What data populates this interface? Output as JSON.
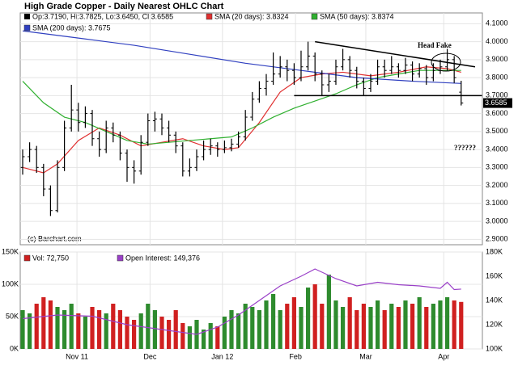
{
  "chart_data": [
    {
      "type": "ohlc",
      "title": "High Grade Copper - Daily Nearest OHLC Chart",
      "ohlc_legend": "Op:3.7190, Hi:3.7825, Lo:3.6450, Cl:3.6585",
      "bar_color": "#000000",
      "credit": "(c) Barchart.com",
      "xlim": [
        -0.35,
        66.05
      ],
      "ylim": [
        2.87,
        4.16
      ],
      "xticks": [
        {
          "value": 7.8,
          "label": "Nov 11"
        },
        {
          "value": 18.3,
          "label": "Dec"
        },
        {
          "value": 28.7,
          "label": "Jan 12"
        },
        {
          "value": 39.2,
          "label": "Feb"
        },
        {
          "value": 49.3,
          "label": "Mar"
        },
        {
          "value": 60.5,
          "label": "Apr"
        }
      ],
      "yticks": [
        {
          "value": 2.9,
          "label": "2.9000"
        },
        {
          "value": 3.0,
          "label": "3.0000"
        },
        {
          "value": 3.1,
          "label": "3.1000"
        },
        {
          "value": 3.2,
          "label": "3.2000"
        },
        {
          "value": 3.3,
          "label": "3.3000"
        },
        {
          "value": 3.4,
          "label": "3.4000"
        },
        {
          "value": 3.5,
          "label": "3.5000"
        },
        {
          "value": 3.6,
          "label": "3.6000"
        },
        {
          "value": 3.7,
          "label": "3.7000"
        },
        {
          "value": 3.8,
          "label": "3.8000"
        },
        {
          "value": 3.9,
          "label": "3.9000"
        },
        {
          "value": 4.0,
          "label": "4.0000"
        },
        {
          "value": 4.1,
          "label": "4.1000"
        }
      ],
      "grid": true,
      "bars": [
        [
          3.3,
          3.4,
          3.26,
          3.36
        ],
        [
          3.36,
          3.44,
          3.33,
          3.4
        ],
        [
          3.4,
          3.42,
          3.27,
          3.3
        ],
        [
          3.3,
          3.32,
          3.14,
          3.18
        ],
        [
          3.18,
          3.2,
          3.03,
          3.06
        ],
        [
          3.06,
          3.34,
          3.05,
          3.3
        ],
        [
          3.3,
          3.56,
          3.28,
          3.52
        ],
        [
          3.52,
          3.76,
          3.5,
          3.62
        ],
        [
          3.62,
          3.66,
          3.5,
          3.55
        ],
        [
          3.55,
          3.64,
          3.52,
          3.6
        ],
        [
          3.6,
          3.62,
          3.42,
          3.46
        ],
        [
          3.46,
          3.5,
          3.36,
          3.4
        ],
        [
          3.4,
          3.56,
          3.38,
          3.52
        ],
        [
          3.52,
          3.55,
          3.44,
          3.48
        ],
        [
          3.48,
          3.5,
          3.34,
          3.38
        ],
        [
          3.38,
          3.4,
          3.22,
          3.3
        ],
        [
          3.3,
          3.34,
          3.21,
          3.28
        ],
        [
          3.28,
          3.48,
          3.26,
          3.44
        ],
        [
          3.44,
          3.6,
          3.42,
          3.56
        ],
        [
          3.56,
          3.61,
          3.5,
          3.57
        ],
        [
          3.57,
          3.6,
          3.48,
          3.52
        ],
        [
          3.52,
          3.56,
          3.44,
          3.48
        ],
        [
          3.48,
          3.5,
          3.38,
          3.42
        ],
        [
          3.42,
          3.44,
          3.25,
          3.28
        ],
        [
          3.28,
          3.35,
          3.25,
          3.3
        ],
        [
          3.3,
          3.4,
          3.28,
          3.36
        ],
        [
          3.36,
          3.45,
          3.34,
          3.4
        ],
        [
          3.4,
          3.46,
          3.37,
          3.42
        ],
        [
          3.42,
          3.44,
          3.36,
          3.4
        ],
        [
          3.4,
          3.45,
          3.38,
          3.41
        ],
        [
          3.41,
          3.46,
          3.39,
          3.43
        ],
        [
          3.43,
          3.5,
          3.41,
          3.47
        ],
        [
          3.47,
          3.62,
          3.45,
          3.58
        ],
        [
          3.58,
          3.72,
          3.56,
          3.68
        ],
        [
          3.68,
          3.78,
          3.66,
          3.74
        ],
        [
          3.74,
          3.82,
          3.7,
          3.78
        ],
        [
          3.78,
          3.94,
          3.76,
          3.82
        ],
        [
          3.82,
          3.92,
          3.8,
          3.86
        ],
        [
          3.86,
          3.9,
          3.78,
          3.84
        ],
        [
          3.84,
          3.88,
          3.76,
          3.8
        ],
        [
          3.8,
          3.95,
          3.78,
          3.86
        ],
        [
          3.86,
          4.0,
          3.84,
          3.92
        ],
        [
          3.92,
          3.94,
          3.78,
          3.82
        ],
        [
          3.82,
          3.84,
          3.7,
          3.76
        ],
        [
          3.76,
          3.82,
          3.72,
          3.78
        ],
        [
          3.78,
          3.9,
          3.76,
          3.86
        ],
        [
          3.86,
          3.96,
          3.84,
          3.9
        ],
        [
          3.9,
          3.92,
          3.8,
          3.84
        ],
        [
          3.84,
          3.86,
          3.74,
          3.78
        ],
        [
          3.78,
          3.8,
          3.7,
          3.74
        ],
        [
          3.74,
          3.82,
          3.72,
          3.78
        ],
        [
          3.78,
          3.9,
          3.76,
          3.86
        ],
        [
          3.86,
          3.9,
          3.8,
          3.84
        ],
        [
          3.84,
          3.92,
          3.82,
          3.86
        ],
        [
          3.86,
          3.88,
          3.8,
          3.84
        ],
        [
          3.84,
          3.91,
          3.82,
          3.87
        ],
        [
          3.87,
          3.89,
          3.78,
          3.82
        ],
        [
          3.82,
          3.88,
          3.8,
          3.85
        ],
        [
          3.85,
          3.87,
          3.76,
          3.8
        ],
        [
          3.8,
          3.88,
          3.78,
          3.84
        ],
        [
          3.84,
          3.9,
          3.82,
          3.86
        ],
        [
          3.86,
          3.96,
          3.84,
          3.9
        ],
        [
          3.9,
          3.92,
          3.77,
          3.8
        ],
        [
          3.719,
          3.7825,
          3.645,
          3.6585
        ]
      ],
      "series": [
        {
          "name": "SMA (20 days): 3.8324",
          "color": "#e03030",
          "x": [
            0,
            3,
            5,
            8,
            11,
            14,
            17,
            20,
            23,
            26,
            29,
            31,
            34,
            37,
            40,
            43,
            46,
            50,
            54,
            58,
            61,
            63
          ],
          "values": [
            3.3,
            3.27,
            3.32,
            3.45,
            3.52,
            3.48,
            3.42,
            3.44,
            3.46,
            3.42,
            3.4,
            3.41,
            3.55,
            3.72,
            3.8,
            3.82,
            3.83,
            3.81,
            3.83,
            3.86,
            3.85,
            3.83
          ]
        },
        {
          "name": "SMA (50 days): 3.8374",
          "color": "#30b030",
          "x": [
            0,
            3,
            6,
            9,
            12,
            15,
            18,
            21,
            24,
            27,
            30,
            33,
            36,
            39,
            42,
            45,
            48,
            51,
            54,
            57,
            60,
            63
          ],
          "values": [
            3.78,
            3.66,
            3.58,
            3.55,
            3.5,
            3.45,
            3.43,
            3.44,
            3.45,
            3.46,
            3.47,
            3.52,
            3.58,
            3.63,
            3.67,
            3.71,
            3.76,
            3.8,
            3.82,
            3.84,
            3.84,
            3.84
          ]
        },
        {
          "name": "SMA (200 days): 3.7675",
          "color": "#3040c0",
          "x": [
            0,
            8,
            16,
            24,
            32,
            40,
            48,
            56,
            63
          ],
          "values": [
            4.06,
            4.02,
            3.98,
            3.93,
            3.88,
            3.84,
            3.8,
            3.78,
            3.7675
          ]
        }
      ],
      "trendlines": [
        {
          "x": [
            42,
            65
          ],
          "y": [
            4.0,
            3.86
          ]
        },
        {
          "x": [
            39,
            66
          ],
          "y": [
            3.7,
            3.7
          ]
        }
      ],
      "annotations": [
        "Head Fake",
        "??????"
      ]
    },
    {
      "type": "bar",
      "up_color": "#2e8b2e",
      "down_color": "#d02020",
      "legend": [
        "Vol: 72,750",
        "Open Interest: 149,376"
      ],
      "ylim": [
        0,
        150000
      ],
      "y2lim": [
        100000,
        180000
      ],
      "yticks": [
        {
          "value": 0,
          "label": "0K"
        },
        {
          "value": 50000,
          "label": "50K"
        },
        {
          "value": 100000,
          "label": "100K"
        },
        {
          "value": 150000,
          "label": "150K"
        }
      ],
      "y2ticks": [
        {
          "value": 100000,
          "label": "100K"
        },
        {
          "value": 120000,
          "label": "120K"
        },
        {
          "value": 140000,
          "label": "140K"
        },
        {
          "value": 160000,
          "label": "160K"
        },
        {
          "value": 180000,
          "label": "180K"
        }
      ],
      "values": [
        60000,
        55000,
        70000,
        80000,
        75000,
        65000,
        60000,
        70000,
        55000,
        50000,
        65000,
        60000,
        55000,
        70000,
        60000,
        50000,
        45000,
        55000,
        70000,
        60000,
        50000,
        45000,
        60000,
        40000,
        35000,
        45000,
        30000,
        40000,
        35000,
        50000,
        60000,
        55000,
        70000,
        65000,
        60000,
        75000,
        85000,
        60000,
        70000,
        80000,
        65000,
        95000,
        100000,
        70000,
        115000,
        75000,
        65000,
        80000,
        60000,
        70000,
        65000,
        75000,
        60000,
        70000,
        65000,
        75000,
        70000,
        80000,
        65000,
        70000,
        75000,
        80000,
        75000,
        72750
      ],
      "series": [
        {
          "color": "#9a40c8",
          "axis": "y2",
          "x": [
            0,
            5,
            10,
            15,
            20,
            25,
            28,
            31,
            34,
            37,
            40,
            42,
            45,
            48,
            51,
            54,
            57,
            60,
            61,
            62,
            63
          ],
          "values": [
            125000,
            128000,
            127000,
            120000,
            116000,
            112000,
            118000,
            128000,
            140000,
            152000,
            160000,
            166000,
            158000,
            152000,
            155000,
            153000,
            152000,
            150000,
            155000,
            149000,
            149376
          ]
        }
      ]
    }
  ]
}
